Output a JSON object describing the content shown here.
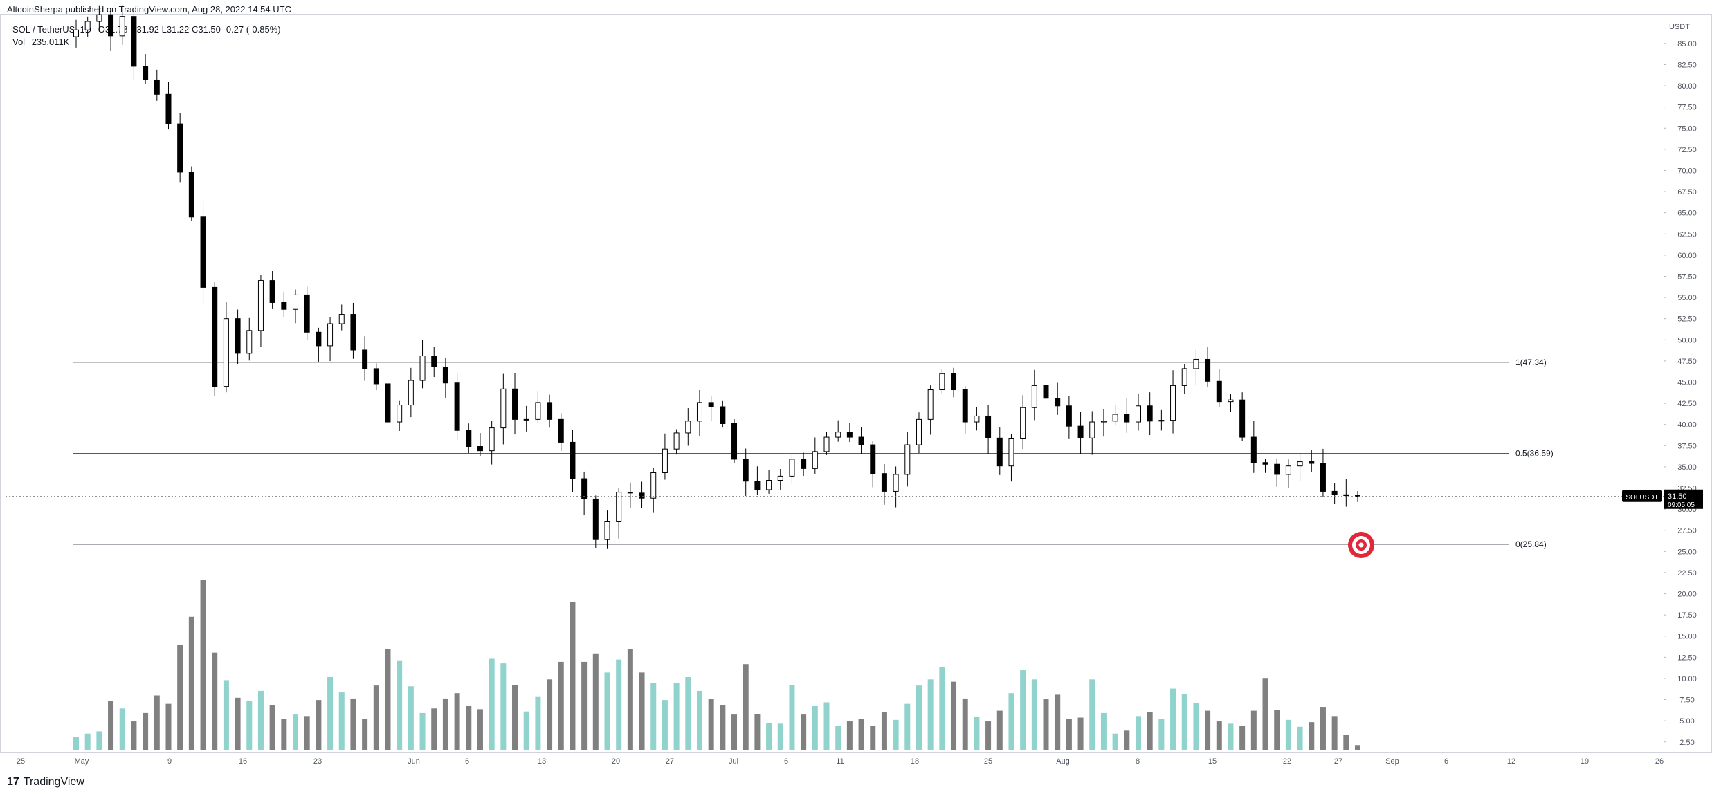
{
  "header": {
    "published": "AltcoinSherpa published on TradingView.com, Aug 28, 2022 14:54 UTC"
  },
  "legend": {
    "symbol": "SOL / TetherUS, 1D",
    "ohlc": "O31.78  H31.92  L31.22  C31.50  -0.27 (-0.85%)",
    "vol_label": "Vol",
    "vol_value": "235.011K"
  },
  "axis": {
    "currency": "USDT"
  },
  "price_badge": {
    "symbol": "SOLUSDT",
    "price": "31.50",
    "countdown": "09:05:05"
  },
  "footer": {
    "brand": "TradingView",
    "logo_glyph": "17"
  },
  "colors": {
    "up": "#ffffff",
    "down": "#000000",
    "vol_up": "#8fd3cc",
    "vol_down": "#808080",
    "target": "#e0283a"
  },
  "chart_data": {
    "type": "candlestick",
    "y_axis": {
      "ticks": [
        2.5,
        5,
        7.5,
        10,
        12.5,
        15,
        17.5,
        20,
        22.5,
        25,
        27.5,
        30,
        32.5,
        35,
        37.5,
        40,
        42.5,
        45,
        47.5,
        50,
        52.5,
        55,
        57.5,
        60,
        62.5,
        65,
        67.5,
        70,
        72.5,
        75,
        77.5,
        80,
        82.5,
        85
      ],
      "range": [
        1.5,
        88.5
      ]
    },
    "x_axis": {
      "ticks": [
        "25",
        "May",
        "9",
        "16",
        "23",
        "Jun",
        "6",
        "13",
        "20",
        "27",
        "Jul",
        "6",
        "11",
        "18",
        "25",
        "Aug",
        "8",
        "15",
        "22",
        "27",
        "Sep",
        "6",
        "12",
        "19",
        "26"
      ]
    },
    "fib_levels": [
      {
        "label": "1(47.34)",
        "value": 47.34
      },
      {
        "label": "0.5(36.59)",
        "value": 36.59
      },
      {
        "label": "0(25.84)",
        "value": 25.84
      }
    ],
    "last_price": 31.5,
    "target_value": 25.84,
    "close": [
      86.6,
      87.6,
      88.4,
      85.9,
      88.2,
      82.3,
      80.7,
      79.0,
      75.5,
      69.8,
      64.5,
      56.2,
      44.5,
      52.5,
      48.4,
      51.1,
      57.0,
      54.4,
      53.6,
      55.3,
      50.9,
      49.3,
      51.9,
      53.0,
      48.8,
      46.6,
      44.8,
      40.3,
      42.3,
      45.2,
      48.1,
      46.8,
      44.9,
      39.3,
      37.4,
      36.9,
      39.6,
      44.2,
      40.6,
      40.6,
      42.6,
      40.6,
      37.9,
      33.6,
      31.2,
      26.4,
      28.5,
      32.0,
      31.9,
      31.3,
      34.3,
      37.1,
      39.0,
      40.4,
      42.6,
      42.1,
      40.1,
      35.9,
      33.3,
      32.3,
      33.4,
      33.9,
      35.9,
      34.8,
      36.8,
      38.5,
      39.1,
      38.5,
      37.6,
      34.2,
      32.1,
      34.1,
      37.6,
      40.6,
      44.1,
      46.0,
      44.1,
      40.3,
      41.0,
      38.4,
      35.1,
      38.3,
      42.0,
      44.6,
      43.1,
      42.2,
      39.8,
      38.4,
      40.3,
      40.4,
      41.2,
      40.3,
      42.2,
      40.4,
      40.5,
      44.6,
      46.6,
      47.7,
      45.1,
      42.7,
      42.9,
      38.5,
      35.5,
      35.3,
      34.1,
      35.1,
      35.6,
      35.4,
      32.1,
      31.7,
      31.6,
      31.5
    ],
    "volume_approx": [
      1.8,
      2.2,
      2.5,
      6.5,
      5.5,
      3.8,
      4.9,
      7.2,
      6.1,
      13.8,
      17.5,
      22.3,
      12.8,
      9.2,
      6.9,
      6.5,
      7.8,
      5.9,
      4.1,
      4.7,
      4.5,
      6.6,
      9.6,
      7.6,
      6.8,
      4.1,
      8.5,
      13.3,
      11.8,
      8.4,
      4.9,
      5.5,
      6.8,
      7.5,
      5.8,
      5.4,
      12.0,
      11.4,
      8.6,
      5.1,
      7.0,
      9.3,
      11.6,
      19.4,
      11.6,
      12.7,
      10.2,
      11.9,
      13.3,
      10.2,
      8.8,
      6.6,
      8.8,
      9.6,
      7.8,
      6.7,
      5.9,
      4.7,
      11.3,
      4.8,
      3.6,
      3.5,
      8.6,
      4.7,
      5.8,
      6.3,
      3.2,
      3.8,
      4.1,
      3.2,
      5.0,
      4.0,
      6.1,
      8.5,
      9.3,
      10.9,
      9.0,
      6.8,
      4.4,
      3.8,
      5.2,
      7.5,
      10.5,
      9.3,
      6.7,
      7.3,
      4.1,
      4.3,
      9.3,
      4.9,
      2.2,
      2.6,
      4.5,
      5.0,
      4.1,
      8.1,
      7.4,
      6.2,
      5.2,
      3.8,
      3.5,
      3.2,
      5.2,
      9.4,
      5.3,
      4.0,
      3.1,
      3.7,
      5.7,
      4.5,
      2.0,
      0.7
    ]
  }
}
